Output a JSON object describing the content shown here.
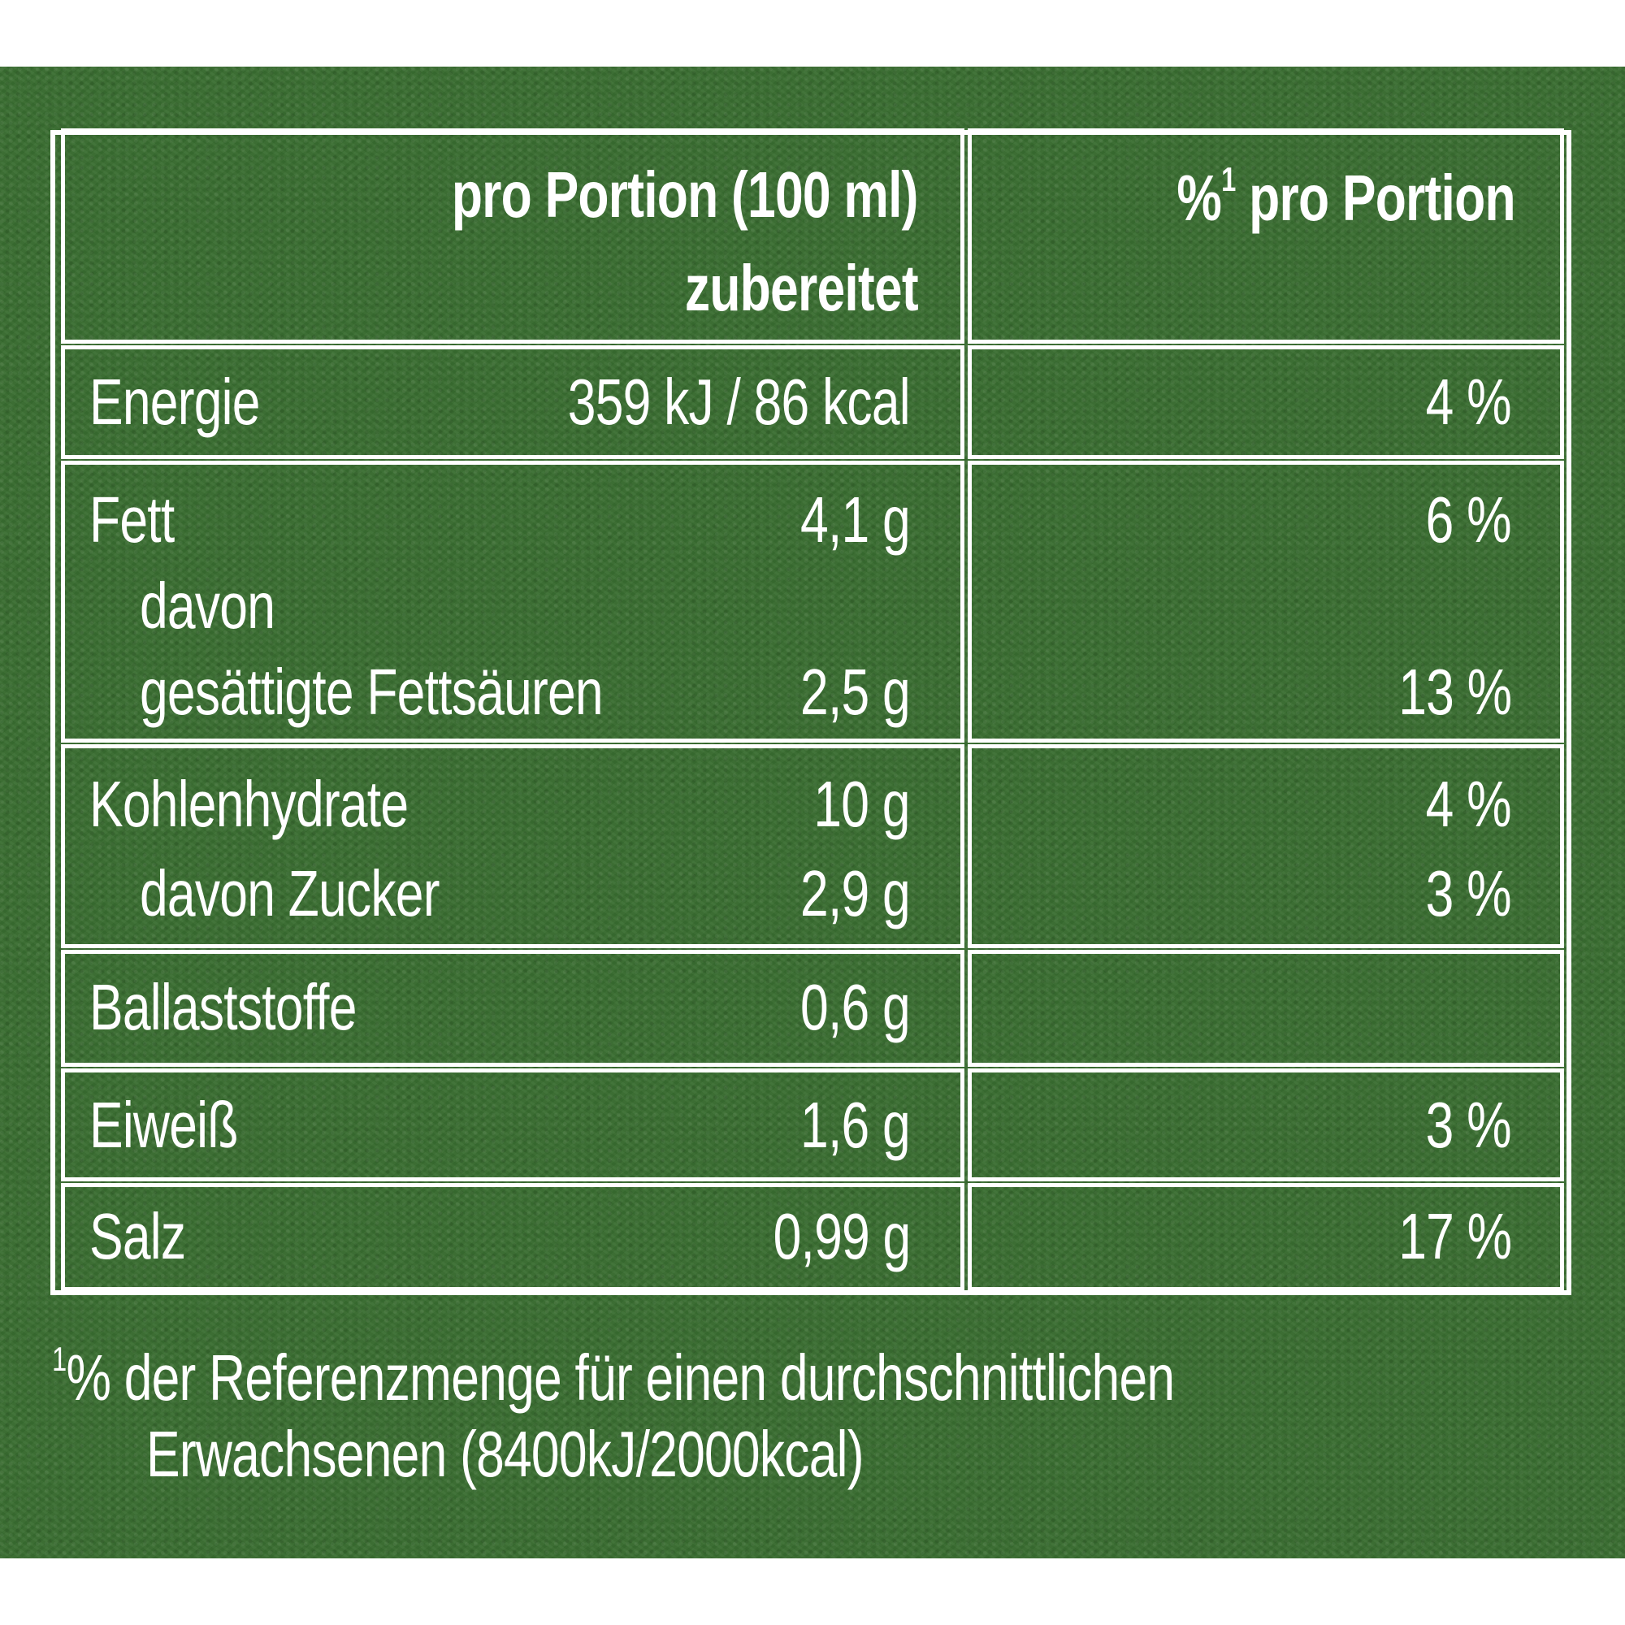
{
  "table": {
    "header": {
      "col1_line1": "pro Portion (100 ml)",
      "col1_line2": "zubereitet",
      "col2_prefix": "%",
      "col2_sup": "1",
      "col2_suffix": " pro Portion"
    },
    "rows": [
      {
        "label": "Energie",
        "value": "359 kJ / 86 kcal",
        "percent": "4 %"
      },
      {
        "label": "Fett",
        "value": "4,1 g",
        "percent": "6 %"
      },
      {
        "label": "davon",
        "value": "",
        "percent": ""
      },
      {
        "label": "gesättigte Fettsäuren",
        "value": "2,5 g",
        "percent": "13 %"
      },
      {
        "label": "Kohlenhydrate",
        "value": "10 g",
        "percent": "4 %"
      },
      {
        "label": "davon Zucker",
        "value": "2,9 g",
        "percent": "3 %"
      },
      {
        "label": "Ballaststoffe",
        "value": "0,6 g",
        "percent": ""
      },
      {
        "label": "Eiweiß",
        "value": "1,6 g",
        "percent": "3 %"
      },
      {
        "label": "Salz",
        "value": "0,99 g",
        "percent": "17 %"
      }
    ]
  },
  "footnote": {
    "sup": "1",
    "line1": "% der Referenzmenge für einen durchschnittlichen",
    "line2": "Erwachsenen (8400kJ/2000kcal)"
  },
  "colors": {
    "background": "#3a6e31",
    "foreground": "#ffffff"
  }
}
